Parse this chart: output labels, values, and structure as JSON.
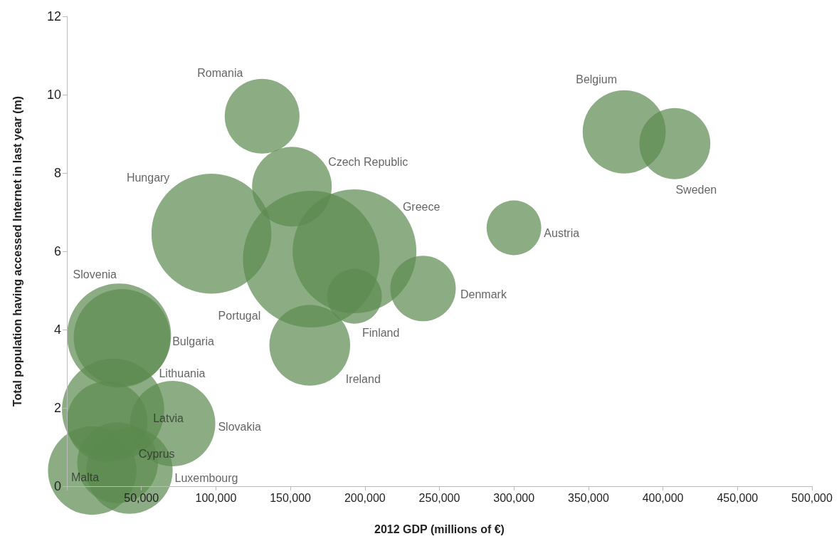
{
  "chart_data": {
    "type": "bubble",
    "xlabel": "2012 GDP (millions of €)",
    "ylabel": "Total population having accessed Internet in last year (m)",
    "xlim": [
      0,
      500000
    ],
    "xticks": [
      {
        "value": 0,
        "label": null
      },
      {
        "value": 50000,
        "label": "50,000"
      },
      {
        "value": 100000,
        "label": "100,000"
      },
      {
        "value": 150000,
        "label": "150,000"
      },
      {
        "value": 200000,
        "label": "200,000"
      },
      {
        "value": 250000,
        "label": "250,000"
      },
      {
        "value": 300000,
        "label": "300,000"
      },
      {
        "value": 350000,
        "label": "350,000"
      },
      {
        "value": 400000,
        "label": "400,000"
      },
      {
        "value": 450000,
        "label": "450,000"
      },
      {
        "value": 500000,
        "label": "500,000"
      }
    ],
    "ylim": [
      0,
      12
    ],
    "yticks": [
      0,
      2,
      4,
      6,
      8,
      10,
      12
    ],
    "series": [
      {
        "name": "Romania",
        "color": "#5b8a4f",
        "x": [
          131000
        ],
        "values": [
          9.45
        ],
        "sizes": [
          0.3
        ]
      },
      {
        "name": "Czech Republic",
        "color": "#5b8a4f",
        "x": [
          151000
        ],
        "values": [
          7.65
        ],
        "sizes": [
          0.34
        ]
      },
      {
        "name": "Hungary",
        "color": "#5b8a4f",
        "x": [
          97000
        ],
        "values": [
          6.45
        ],
        "sizes": [
          0.77
        ]
      },
      {
        "name": "Portugal",
        "color": "#5b8a4f",
        "x": [
          164000
        ],
        "values": [
          5.8
        ],
        "sizes": [
          1
        ]
      },
      {
        "name": "Greece",
        "color": "#5b8a4f",
        "x": [
          193000
        ],
        "values": [
          6
        ],
        "sizes": [
          0.82
        ]
      },
      {
        "name": "Finland",
        "color": "#5b8a4f",
        "x": [
          193000
        ],
        "values": [
          4.85
        ],
        "sizes": [
          0.16
        ]
      },
      {
        "name": "Denmark",
        "color": "#5b8a4f",
        "x": [
          239000
        ],
        "values": [
          5.05
        ],
        "sizes": [
          0.23
        ]
      },
      {
        "name": "Austria",
        "color": "#5b8a4f",
        "x": [
          300000
        ],
        "values": [
          6.6
        ],
        "sizes": [
          0.16
        ]
      },
      {
        "name": "Belgium",
        "color": "#5b8a4f",
        "x": [
          374000
        ],
        "values": [
          9.05
        ],
        "sizes": [
          0.37
        ]
      },
      {
        "name": "Sweden",
        "color": "#5b8a4f",
        "x": [
          408000
        ],
        "values": [
          8.75
        ],
        "sizes": [
          0.27
        ]
      },
      {
        "name": "Ireland",
        "color": "#5b8a4f",
        "x": [
          163000
        ],
        "values": [
          3.6
        ],
        "sizes": [
          0.35
        ]
      },
      {
        "name": "Slovenia",
        "color": "#5b8a4f",
        "x": [
          35000
        ],
        "values": [
          3.85
        ],
        "sizes": [
          0.58
        ]
      },
      {
        "name": "Bulgaria",
        "color": "#5b8a4f",
        "x": [
          37000
        ],
        "values": [
          3.8
        ],
        "sizes": [
          0.5
        ]
      },
      {
        "name": "Lithuania",
        "color": "#5b8a4f",
        "x": [
          31000
        ],
        "values": [
          1.95
        ],
        "sizes": [
          0.56
        ]
      },
      {
        "name": "Latvia",
        "color": "#5b8a4f",
        "x": [
          27000
        ],
        "values": [
          1.65
        ],
        "sizes": [
          0.35
        ]
      },
      {
        "name": "Slovakia",
        "color": "#5b8a4f",
        "x": [
          71000
        ],
        "values": [
          1.6
        ],
        "sizes": [
          0.39
        ]
      },
      {
        "name": "Cyprus",
        "color": "#5b8a4f",
        "x": [
          34000
        ],
        "values": [
          0.6
        ],
        "sizes": [
          0.35
        ]
      },
      {
        "name": "Luxembourg",
        "color": "#5b8a4f",
        "x": [
          42000
        ],
        "values": [
          0.4
        ],
        "sizes": [
          0.4
        ]
      },
      {
        "name": "Malta",
        "color": "#5b8a4f",
        "x": [
          17000
        ],
        "values": [
          0.4
        ],
        "sizes": [
          0.42
        ]
      }
    ]
  }
}
